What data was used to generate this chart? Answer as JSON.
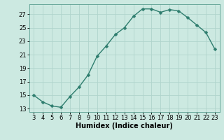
{
  "x": [
    3,
    4,
    5,
    6,
    7,
    8,
    9,
    10,
    11,
    12,
    13,
    14,
    15,
    16,
    17,
    18,
    19,
    20,
    21,
    22,
    23
  ],
  "y": [
    15.0,
    14.0,
    13.4,
    13.2,
    14.8,
    16.2,
    18.0,
    20.8,
    22.3,
    24.0,
    25.0,
    26.7,
    27.8,
    27.8,
    27.3,
    27.7,
    27.5,
    26.5,
    25.4,
    24.3,
    21.8
  ],
  "line_color": "#2e7d6e",
  "marker_color": "#2e7d6e",
  "bg_color": "#cce9e1",
  "grid_color": "#b0d4cc",
  "xlabel": "Humidex (Indice chaleur)",
  "yticks": [
    13,
    15,
    17,
    19,
    21,
    23,
    25,
    27
  ],
  "xticks": [
    3,
    4,
    5,
    6,
    7,
    8,
    9,
    10,
    11,
    12,
    13,
    14,
    15,
    16,
    17,
    18,
    19,
    20,
    21,
    22,
    23
  ],
  "xlim": [
    2.5,
    23.5
  ],
  "ylim": [
    12.5,
    28.5
  ],
  "xlabel_fontsize": 7,
  "tick_fontsize": 6,
  "line_width": 1.0,
  "marker_size": 2.5
}
